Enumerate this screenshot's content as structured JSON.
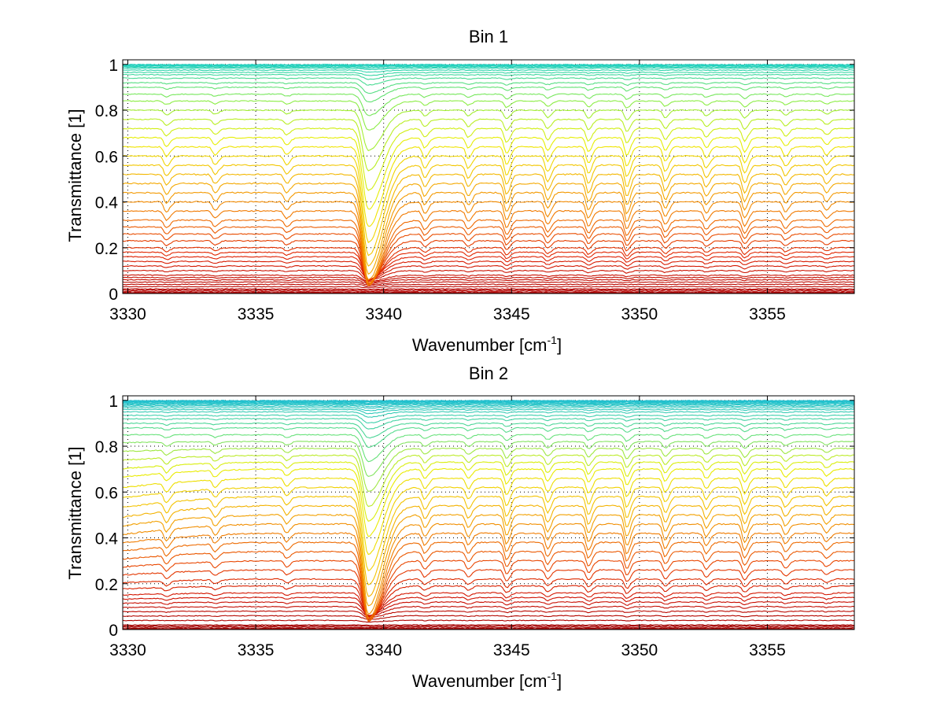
{
  "chart_data": [
    {
      "type": "line",
      "title": "Bin 1",
      "xlabel": "Wavenumber [cm",
      "xlabel_sup": "-1",
      "xlabel_close": "]",
      "ylabel": "Transmittance [1]",
      "xlim": [
        3329.8,
        3358.4
      ],
      "ylim": [
        0,
        1.02
      ],
      "xticks": [
        3330,
        3335,
        3340,
        3345,
        3350,
        3355
      ],
      "yticks": [
        0,
        0.2,
        0.4,
        0.6,
        0.8,
        1
      ],
      "ytick_labels": [
        "0",
        "0.2",
        "0.4",
        "0.6",
        "0.8",
        "1"
      ],
      "grid": "dotted",
      "legend": "none",
      "colormap": [
        "#b00000",
        "#e02000",
        "#f07000",
        "#f4b000",
        "#eeee00",
        "#90ee40",
        "#20d0c0"
      ],
      "baseline_transmittance": [
        0.0,
        0.005,
        0.01,
        0.015,
        0.02,
        0.03,
        0.04,
        0.05,
        0.06,
        0.07,
        0.08,
        0.1,
        0.12,
        0.14,
        0.16,
        0.18,
        0.2,
        0.23,
        0.26,
        0.29,
        0.32,
        0.36,
        0.4,
        0.44,
        0.48,
        0.52,
        0.56,
        0.6,
        0.64,
        0.68,
        0.72,
        0.76,
        0.8,
        0.84,
        0.87,
        0.9,
        0.92,
        0.94,
        0.955,
        0.965,
        0.975,
        0.983,
        0.988,
        0.992,
        0.995,
        0.997,
        0.999
      ],
      "absorption_lines": [
        {
          "x": 3339.4,
          "depth": 1.0,
          "width": 0.35
        },
        {
          "x": 3331.5,
          "depth": 0.12,
          "width": 0.15
        },
        {
          "x": 3333.4,
          "depth": 0.1,
          "width": 0.15
        },
        {
          "x": 3336.2,
          "depth": 0.1,
          "width": 0.15
        },
        {
          "x": 3341.6,
          "depth": 0.14,
          "width": 0.15
        },
        {
          "x": 3343.3,
          "depth": 0.14,
          "width": 0.15
        },
        {
          "x": 3344.8,
          "depth": 0.22,
          "width": 0.15
        },
        {
          "x": 3346.4,
          "depth": 0.18,
          "width": 0.15
        },
        {
          "x": 3348.0,
          "depth": 0.2,
          "width": 0.15
        },
        {
          "x": 3349.5,
          "depth": 0.24,
          "width": 0.15
        },
        {
          "x": 3351.0,
          "depth": 0.18,
          "width": 0.15
        },
        {
          "x": 3352.6,
          "depth": 0.14,
          "width": 0.15
        },
        {
          "x": 3354.1,
          "depth": 0.2,
          "width": 0.15
        },
        {
          "x": 3355.7,
          "depth": 0.12,
          "width": 0.15
        },
        {
          "x": 3357.3,
          "depth": 0.1,
          "width": 0.15
        }
      ]
    },
    {
      "type": "line",
      "title": "Bin 2",
      "xlabel": "Wavenumber [cm",
      "xlabel_sup": "-1",
      "xlabel_close": "]",
      "ylabel": "Transmittance [1]",
      "xlim": [
        3329.8,
        3358.4
      ],
      "ylim": [
        0,
        1.02
      ],
      "xticks": [
        3330,
        3335,
        3340,
        3345,
        3350,
        3355
      ],
      "yticks": [
        0,
        0.2,
        0.4,
        0.6,
        0.8,
        1
      ],
      "ytick_labels": [
        "0",
        "0.2",
        "0.4",
        "0.6",
        "0.8",
        "1"
      ],
      "grid": "dotted",
      "legend": "none",
      "colormap": [
        "#a00000",
        "#d01000",
        "#e84000",
        "#f08000",
        "#f4c000",
        "#e8f000",
        "#60e080",
        "#20c0d0"
      ],
      "baseline_transmittance": [
        0.0,
        0.005,
        0.01,
        0.015,
        0.02,
        0.04,
        0.06,
        0.08,
        0.1,
        0.12,
        0.14,
        0.16,
        0.19,
        0.22,
        0.26,
        0.3,
        0.34,
        0.38,
        0.42,
        0.46,
        0.5,
        0.54,
        0.58,
        0.62,
        0.66,
        0.7,
        0.73,
        0.76,
        0.79,
        0.82,
        0.85,
        0.88,
        0.9,
        0.92,
        0.935,
        0.95,
        0.96,
        0.968,
        0.975,
        0.98,
        0.985,
        0.988,
        0.991,
        0.994,
        0.996,
        0.998,
        0.999
      ],
      "absorption_lines": [
        {
          "x": 3339.4,
          "depth": 1.0,
          "width": 0.35
        },
        {
          "x": 3331.5,
          "depth": 0.12,
          "width": 0.15
        },
        {
          "x": 3333.4,
          "depth": 0.1,
          "width": 0.15
        },
        {
          "x": 3336.2,
          "depth": 0.1,
          "width": 0.15
        },
        {
          "x": 3341.6,
          "depth": 0.14,
          "width": 0.15
        },
        {
          "x": 3343.3,
          "depth": 0.14,
          "width": 0.15
        },
        {
          "x": 3344.8,
          "depth": 0.22,
          "width": 0.15
        },
        {
          "x": 3346.4,
          "depth": 0.18,
          "width": 0.15
        },
        {
          "x": 3348.0,
          "depth": 0.2,
          "width": 0.15
        },
        {
          "x": 3349.5,
          "depth": 0.24,
          "width": 0.15
        },
        {
          "x": 3351.0,
          "depth": 0.18,
          "width": 0.15
        },
        {
          "x": 3352.6,
          "depth": 0.14,
          "width": 0.15
        },
        {
          "x": 3354.1,
          "depth": 0.2,
          "width": 0.15
        },
        {
          "x": 3355.7,
          "depth": 0.12,
          "width": 0.15
        },
        {
          "x": 3357.3,
          "depth": 0.1,
          "width": 0.15
        }
      ],
      "low_wavenumber_rolloff": {
        "x_start": 3329.8,
        "x_end": 3336.0,
        "max_drop": 0.1
      }
    }
  ]
}
